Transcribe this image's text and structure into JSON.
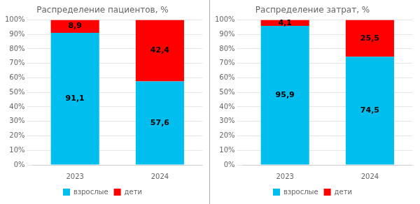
{
  "chart_data": [
    {
      "type": "bar",
      "title": "Распределение пациентов, %",
      "categories": [
        "2023",
        "2024"
      ],
      "stacked": true,
      "series": [
        {
          "name": "взрослые",
          "color": "#00BFEF",
          "values": [
            91.1,
            57.6
          ],
          "value_labels": [
            "91,1",
            "57,6"
          ]
        },
        {
          "name": "дети",
          "color": "#FF0000",
          "values": [
            8.9,
            42.4
          ],
          "value_labels": [
            "8,9",
            "42,4"
          ]
        }
      ],
      "ylim": [
        0,
        100
      ],
      "yticks": [
        {
          "value": 0,
          "label": "0%"
        },
        {
          "value": 10,
          "label": "10%"
        },
        {
          "value": 20,
          "label": "20%"
        },
        {
          "value": 30,
          "label": "30%"
        },
        {
          "value": 40,
          "label": "40%"
        },
        {
          "value": 50,
          "label": "50%"
        },
        {
          "value": 60,
          "label": "60%"
        },
        {
          "value": 70,
          "label": "70%"
        },
        {
          "value": 80,
          "label": "80%"
        },
        {
          "value": 90,
          "label": "90%"
        },
        {
          "value": 100,
          "label": "100%"
        }
      ],
      "grid": true,
      "legend": "bottom",
      "data_labels": true
    },
    {
      "type": "bar",
      "title": "Распределение затрат, %",
      "categories": [
        "2023",
        "2024"
      ],
      "stacked": true,
      "series": [
        {
          "name": "взрослые",
          "color": "#00BFEF",
          "values": [
            95.9,
            74.5
          ],
          "value_labels": [
            "95,9",
            "74,5"
          ]
        },
        {
          "name": "дети",
          "color": "#FF0000",
          "values": [
            4.1,
            25.5
          ],
          "value_labels": [
            "4,1",
            "25,5"
          ]
        }
      ],
      "ylim": [
        0,
        100
      ],
      "yticks": [
        {
          "value": 0,
          "label": "0%"
        },
        {
          "value": 10,
          "label": "10%"
        },
        {
          "value": 20,
          "label": "20%"
        },
        {
          "value": 30,
          "label": "30%"
        },
        {
          "value": 40,
          "label": "40%"
        },
        {
          "value": 50,
          "label": "50%"
        },
        {
          "value": 60,
          "label": "60%"
        },
        {
          "value": 70,
          "label": "70%"
        },
        {
          "value": 80,
          "label": "80%"
        },
        {
          "value": 90,
          "label": "90%"
        },
        {
          "value": 100,
          "label": "100%"
        }
      ],
      "grid": true,
      "legend": "bottom",
      "data_labels": true
    }
  ]
}
